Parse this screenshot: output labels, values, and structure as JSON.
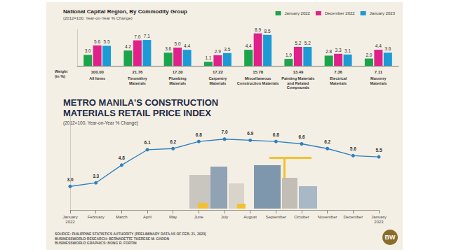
{
  "chart_data": [
    {
      "type": "bar",
      "title": "National Capital Region, By Commodity Group",
      "subtitle": "(2012=100, Year-on-Year % Change)",
      "categories": [
        "All Items",
        "Tinsmithry\nMaterials",
        "Plumbing\nMaterials",
        "Carpentry\nMaterials",
        "Miscellaneous\nConstruction Materials",
        "Painting Materials\nand Related\nCompounds",
        "Electrical\nMaterials",
        "Masonry\nMaterials"
      ],
      "weight_label": "Weight\n(in %)",
      "weights": [
        100.0,
        21.76,
        17.3,
        17.22,
        15.78,
        13.49,
        7.36,
        7.11
      ],
      "series": [
        {
          "name": "January 2022",
          "color": "#1aa54a",
          "values": [
            3.0,
            4.2,
            3.6,
            1.1,
            4.4,
            1.9,
            2.8,
            2.0
          ],
          "value_labels": [
            "3.0",
            "4.2",
            "3.6",
            "1.1",
            "4.4",
            "1.9",
            "2.8",
            "2.0"
          ]
        },
        {
          "name": "December 2022",
          "color": "#e0218a",
          "values": [
            5.6,
            7.0,
            5.0,
            2.9,
            8.9,
            5.2,
            3.3,
            4.4
          ],
          "value_labels": [
            "5.6",
            "7.0",
            "5.0",
            "2.9",
            "8.9",
            "5.2",
            "3.3",
            "4.4"
          ]
        },
        {
          "name": "January 2023",
          "color": "#1b9ad6",
          "values": [
            5.5,
            7.1,
            4.4,
            3.5,
            8.5,
            5.2,
            3.1,
            3.6
          ],
          "value_labels": [
            "5.5",
            "7.1",
            "4.4",
            "3.5",
            "8.5",
            "5.2",
            "3.1",
            "3.6"
          ]
        }
      ],
      "ylim": [
        0,
        10
      ],
      "yticks": [
        0,
        10
      ],
      "grid": false,
      "legend": "top-right",
      "data_labels": true,
      "tick_labels": "x"
    },
    {
      "type": "line",
      "title": "METRO MANILA'S CONSTRUCTION\nMATERIALS RETAIL PRICE INDEX",
      "subtitle": "(2012=100, Year-on-Year % Change)",
      "categories": [
        "January\n2022",
        "February",
        "March",
        "April",
        "May",
        "June",
        "July",
        "August",
        "September",
        "October",
        "November",
        "December",
        "January\n2023"
      ],
      "values": [
        3.0,
        3.3,
        4.8,
        6.1,
        6.2,
        6.8,
        7.0,
        6.9,
        6.8,
        6.6,
        6.2,
        5.6,
        5.5
      ],
      "value_labels": [
        "3.0",
        "3.3",
        "4.8",
        "6.1",
        "6.2",
        "6.8",
        "7.0",
        "6.9",
        "6.8",
        "6.6",
        "6.2",
        "5.6",
        "5.5"
      ],
      "color": "#2f7fc1",
      "marker": "circle",
      "ylim": [
        1,
        9
      ],
      "yticks": [
        1,
        9
      ],
      "grid": false,
      "data_labels": true,
      "tick_labels": "x"
    }
  ],
  "source": [
    "SOURCE: PHILIPPINE STATISTICS AUTHORITY (PRELIMINARY DATA AS OF FEB. 21, 2023)",
    "BUSINESSWORLD RESEARCH: BERNADETTE THERESE M. GADON",
    "BUSINESSWORLD GRAPHICS: BONG R. FORTIN"
  ],
  "logo": "BW"
}
